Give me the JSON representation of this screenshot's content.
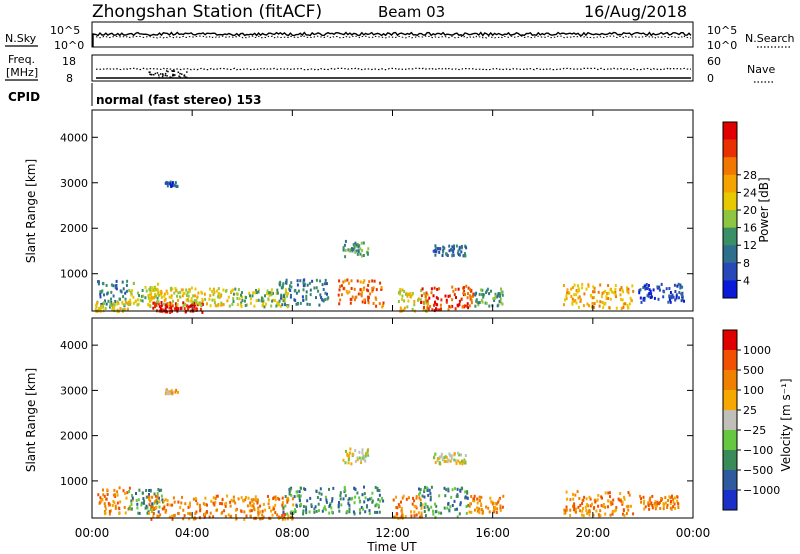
{
  "header": {
    "station": "Zhongshan Station (fitACF)",
    "beam": "Beam 03",
    "date": "16/Aug/2018"
  },
  "top_panels": {
    "noise": {
      "left_label": "N.Sky",
      "right_label": "N.Search",
      "left_ticks": [
        "10^5",
        "10^0"
      ],
      "right_ticks": [
        "10^5",
        "10^0"
      ]
    },
    "freq": {
      "left_label_line1": "Freq.",
      "left_label_line2": "[MHz]",
      "right_label": "Nave",
      "left_ticks": [
        "18",
        "8"
      ],
      "right_ticks": [
        "60",
        "0"
      ]
    },
    "cpid": {
      "label": "CPID",
      "text": "normal (fast stereo) 153"
    }
  },
  "chart_data": [
    {
      "type": "heatmap",
      "name": "power-panel",
      "ylabel": "Slant Range [km]",
      "yticks": [
        1000,
        2000,
        3000,
        4000
      ],
      "ylim": [
        180,
        4600
      ],
      "xlim": [
        0,
        24
      ],
      "colorbar": {
        "label": "Power [dB]",
        "ticks": [
          "4",
          "8",
          "12",
          "16",
          "20",
          "24",
          "28"
        ],
        "colors": [
          "#0a1ad8",
          "#2748b8",
          "#2f6f8e",
          "#3a9066",
          "#8ec63f",
          "#e8c800",
          "#f4a300",
          "#f07800",
          "#e83000",
          "#e00000"
        ]
      },
      "regions": [
        {
          "t0": 0.2,
          "t1": 1.4,
          "r0": 300,
          "r1": 900,
          "level": 2
        },
        {
          "t0": 0.1,
          "t1": 1.5,
          "r0": 200,
          "r1": 420,
          "level": 5
        },
        {
          "t0": 1.4,
          "t1": 2.6,
          "r0": 300,
          "r1": 820,
          "level": 4
        },
        {
          "t0": 2.4,
          "t1": 4.4,
          "r0": 180,
          "r1": 400,
          "level": 9
        },
        {
          "t0": 2.2,
          "t1": 5.6,
          "r0": 320,
          "r1": 720,
          "level": 5
        },
        {
          "t0": 5.6,
          "t1": 7.8,
          "r0": 300,
          "r1": 700,
          "level": 4
        },
        {
          "t0": 7.4,
          "t1": 9.4,
          "r0": 300,
          "r1": 900,
          "level": 2
        },
        {
          "t0": 9.8,
          "t1": 11.6,
          "r0": 300,
          "r1": 900,
          "level": 7
        },
        {
          "t0": 10.0,
          "t1": 11.0,
          "r0": 1400,
          "r1": 1750,
          "level": 3
        },
        {
          "t0": 12.2,
          "t1": 13.4,
          "r0": 200,
          "r1": 700,
          "level": 5
        },
        {
          "t0": 13.0,
          "t1": 15.2,
          "r0": 220,
          "r1": 760,
          "level": 8
        },
        {
          "t0": 13.6,
          "t1": 14.9,
          "r0": 1400,
          "r1": 1650,
          "level": 2
        },
        {
          "t0": 15.2,
          "t1": 16.4,
          "r0": 300,
          "r1": 700,
          "level": 3
        },
        {
          "t0": 18.8,
          "t1": 21.6,
          "r0": 260,
          "r1": 800,
          "level": 6
        },
        {
          "t0": 21.8,
          "t1": 23.6,
          "r0": 400,
          "r1": 800,
          "level": 1
        },
        {
          "t0": 2.9,
          "t1": 3.4,
          "r0": 2950,
          "r1": 3050,
          "level": 1
        }
      ]
    },
    {
      "type": "heatmap",
      "name": "velocity-panel",
      "ylabel": "Slant Range [km]",
      "yticks": [
        1000,
        2000,
        3000,
        4000
      ],
      "ylim": [
        180,
        4600
      ],
      "xlim": [
        0,
        24
      ],
      "xticks": [
        "00:00",
        "04:00",
        "08:00",
        "12:00",
        "16:00",
        "20:00",
        "00:00"
      ],
      "xlabel": "Time UT",
      "colorbar": {
        "label": "Velocity [m s⁻¹]",
        "ticks": [
          "1000",
          "500",
          "100",
          "25",
          "−25",
          "−100",
          "−500",
          "−1000"
        ],
        "colors": [
          "#1a2fc8",
          "#2f5aa0",
          "#3a8a5a",
          "#66c840",
          "#c0c0b8",
          "#f7a800",
          "#f08000",
          "#f05000",
          "#e00000"
        ]
      },
      "regions": [
        {
          "t0": 0.2,
          "t1": 1.6,
          "r0": 300,
          "r1": 900,
          "level": 6
        },
        {
          "t0": 1.4,
          "t1": 2.8,
          "r0": 300,
          "r1": 850,
          "level": 2
        },
        {
          "t0": 2.2,
          "t1": 8.0,
          "r0": 180,
          "r1": 700,
          "level": 6
        },
        {
          "t0": 7.6,
          "t1": 9.6,
          "r0": 300,
          "r1": 880,
          "level": 2
        },
        {
          "t0": 9.8,
          "t1": 11.6,
          "r0": 300,
          "r1": 900,
          "level": 2
        },
        {
          "t0": 10.0,
          "t1": 11.0,
          "r0": 1400,
          "r1": 1750,
          "level": 4
        },
        {
          "t0": 12.0,
          "t1": 13.2,
          "r0": 200,
          "r1": 700,
          "level": 6
        },
        {
          "t0": 13.0,
          "t1": 15.0,
          "r0": 220,
          "r1": 900,
          "level": 2
        },
        {
          "t0": 13.6,
          "t1": 14.9,
          "r0": 1400,
          "r1": 1650,
          "level": 4
        },
        {
          "t0": 15.0,
          "t1": 16.4,
          "r0": 300,
          "r1": 700,
          "level": 6
        },
        {
          "t0": 18.8,
          "t1": 21.6,
          "r0": 260,
          "r1": 800,
          "level": 6
        },
        {
          "t0": 21.8,
          "t1": 23.4,
          "r0": 400,
          "r1": 700,
          "level": 6
        },
        {
          "t0": 2.9,
          "t1": 3.4,
          "r0": 2950,
          "r1": 3050,
          "level": 5
        }
      ]
    }
  ]
}
